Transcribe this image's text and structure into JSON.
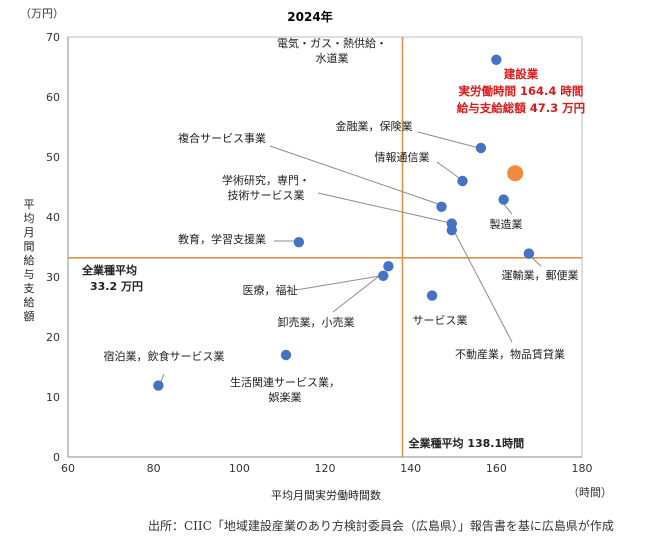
{
  "chart_data": {
    "type": "scatter",
    "title": "2024年",
    "xlabel": "平均月間実労働時間数",
    "ylabel": "平均月間給与支給額",
    "x_unit": "（時間）",
    "y_unit": "（万円）",
    "xlim": [
      60,
      180
    ],
    "ylim": [
      0,
      70
    ],
    "x_ticks": [
      "60",
      "80",
      "100",
      "120",
      "140",
      "160",
      "180"
    ],
    "y_ticks": [
      "0",
      "10",
      "20",
      "30",
      "40",
      "50",
      "60",
      "70"
    ],
    "points": [
      {
        "name": "電気・ガス・熱供給・水道業",
        "label_lines": [
          "電気・ガス・熱供給・",
          "水道業"
        ],
        "x": 160.0,
        "y": 66.2
      },
      {
        "name": "金融業，保険業",
        "label_lines": [
          "金融業，保険業"
        ],
        "x": 156.4,
        "y": 51.5
      },
      {
        "name": "情報通信業",
        "label_lines": [
          "情報通信業"
        ],
        "x": 152.1,
        "y": 46.0
      },
      {
        "name": "製造業",
        "label_lines": [
          "製造業"
        ],
        "x": 161.7,
        "y": 42.9
      },
      {
        "name": "複合サービス事業",
        "label_lines": [
          "複合サービス事業"
        ],
        "x": 147.2,
        "y": 41.7
      },
      {
        "name": "学術研究，専門・技術サービス業",
        "label_lines": [
          "学術研究，専門・",
          "技術サービス業"
        ],
        "x": 149.6,
        "y": 38.9
      },
      {
        "name": "不動産業，物品賃貸業",
        "label_lines": [
          "不動産業，物品賃貸業"
        ],
        "x": 149.6,
        "y": 37.8
      },
      {
        "name": "教育，学習支援業",
        "label_lines": [
          "教育，学習支援業"
        ],
        "x": 113.9,
        "y": 35.8
      },
      {
        "name": "運輸業，郵便業",
        "label_lines": [
          "運輸業，郵便業"
        ],
        "x": 167.6,
        "y": 33.9
      },
      {
        "name": "卸売業，小売業",
        "label_lines": [
          "卸売業，小売業"
        ],
        "x": 134.8,
        "y": 31.8
      },
      {
        "name": "医療，福祉",
        "label_lines": [
          "医療，福祉"
        ],
        "x": 133.6,
        "y": 30.2
      },
      {
        "name": "サービス業",
        "label_lines": [
          "サービス業"
        ],
        "x": 145.0,
        "y": 26.9
      },
      {
        "name": "生活関連サービス業，娯楽業",
        "label_lines": [
          "生活関連サービス業，",
          "娯楽業"
        ],
        "x": 110.9,
        "y": 17.0
      },
      {
        "name": "宿泊業，飲食サービス業",
        "label_lines": [
          "宿泊業，飲食サービス業"
        ],
        "x": 81.1,
        "y": 11.9
      }
    ],
    "highlight": {
      "name": "建設業",
      "x": 164.4,
      "y": 47.3,
      "label_lines": [
        "建設業",
        "実労働時間 164.4 時間",
        "給与支給総額 47.3 万円"
      ],
      "color": "#f08a3c",
      "label_color": "#d91a1a"
    },
    "reference_lines": {
      "vertical": {
        "x": 138.1,
        "label": "全業種平均 138.1時間"
      },
      "horizontal": {
        "y": 33.2,
        "label_lines": [
          "全業種平均",
          "33.2 万円"
        ]
      },
      "color": "#d9944a"
    },
    "point_color": "#4472c4",
    "grid": false
  },
  "source": "出所：CIIC「地域建設産業のあり方検討委員会（広島県）」報告書を基に広島県が作成"
}
